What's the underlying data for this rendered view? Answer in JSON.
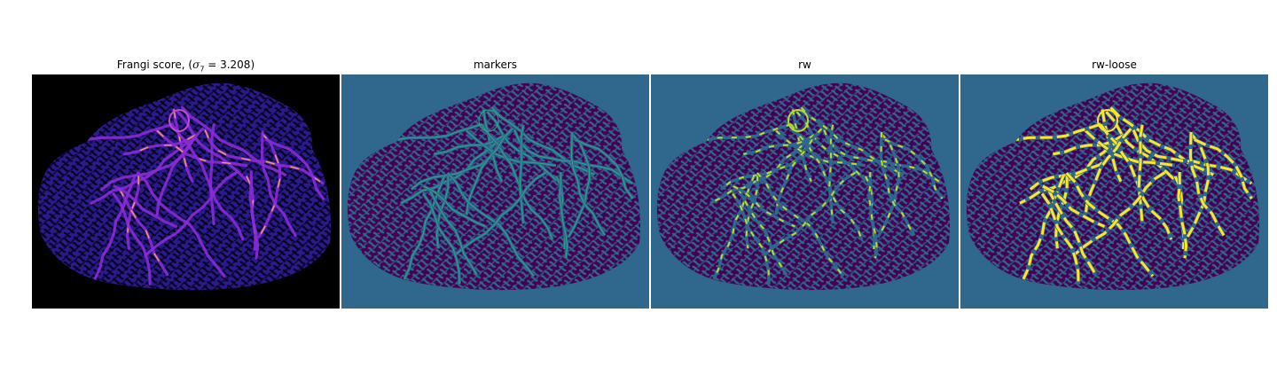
{
  "panels": [
    {
      "title": "Frangi score, (",
      "title_sigma": "σ",
      "title_sub": "7",
      "title_rest": " = 3.208)",
      "style": "frangi"
    },
    {
      "title": "markers",
      "style": "markers"
    },
    {
      "title": "rw",
      "style": "rw"
    },
    {
      "title": "rw-loose",
      "style": "rwloose"
    }
  ],
  "colors": {
    "frangi_bg": "#000000",
    "frangi_tissue": "#2a1a8c",
    "frangi_vessel_low": "#8a2bd6",
    "frangi_vessel_high": "#f2a25a",
    "viridis_bg": "#30678d",
    "viridis_tissue": "#440154",
    "viridis_marker": "#27ad81",
    "viridis_rw": "#b8de29",
    "viridis_loose": "#fde725"
  }
}
